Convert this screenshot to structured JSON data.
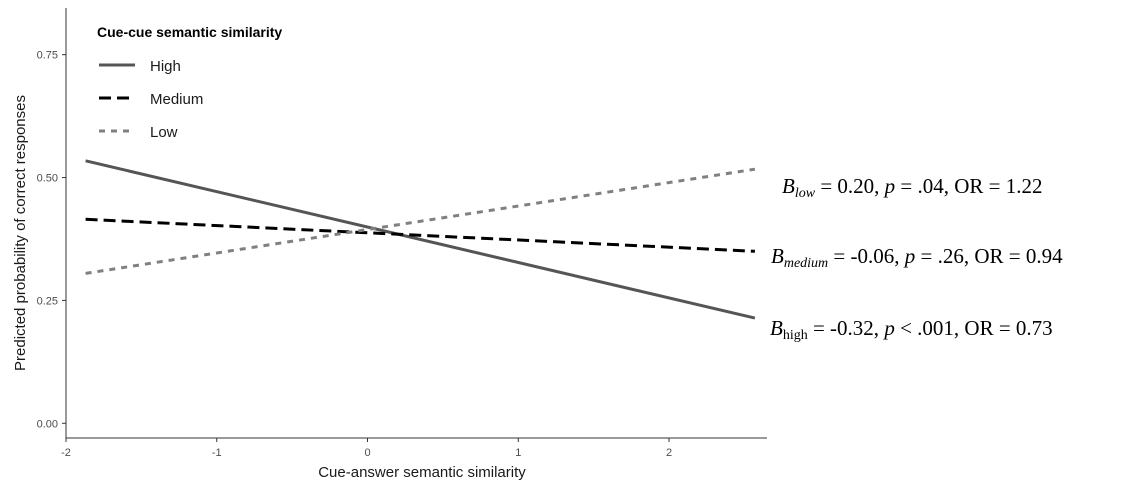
{
  "chart_data": {
    "type": "line",
    "title": "",
    "xlabel": "Cue-answer semantic similarity",
    "ylabel": "Predicted probability of correct responses",
    "xlim": [
      -2.0,
      2.65
    ],
    "ylim": [
      -0.03,
      0.845
    ],
    "x_ticks": [
      -2,
      -1,
      0,
      1,
      2
    ],
    "x_tick_labels": [
      "-2",
      "-1",
      "0",
      "1",
      "2"
    ],
    "y_ticks": [
      0.0,
      0.25,
      0.5,
      0.75
    ],
    "y_tick_labels": [
      "0.00",
      "0.25",
      "0.50",
      "0.75"
    ],
    "grid": false,
    "legend": {
      "title": "Cue-cue semantic similarity",
      "position": "top-left"
    },
    "series": [
      {
        "name": "High",
        "x": [
          -1.87,
          2.57
        ],
        "y": [
          0.534,
          0.214
        ],
        "color": "#555555",
        "dash": "solid"
      },
      {
        "name": "Medium",
        "x": [
          -1.87,
          2.57
        ],
        "y": [
          0.415,
          0.35
        ],
        "color": "#000000",
        "dash": "dashed"
      },
      {
        "name": "Low",
        "x": [
          -1.87,
          2.57
        ],
        "y": [
          0.305,
          0.517
        ],
        "color": "#808080",
        "dash": "dotted"
      }
    ],
    "annotations": [
      {
        "name": "low",
        "B": "B",
        "sub": "low",
        "sub_italic": true,
        "text": [
          {
            "t": " = 0.20, "
          },
          {
            "t": "p",
            "i": true
          },
          {
            "t": " = .04, OR = 1.22"
          }
        ]
      },
      {
        "name": "medium",
        "B": "B",
        "sub": "medium",
        "sub_italic": true,
        "text": [
          {
            "t": " = -0.06, "
          },
          {
            "t": "p",
            "i": true
          },
          {
            "t": " = .26, OR = 0.94"
          }
        ]
      },
      {
        "name": "high",
        "B": "B",
        "sub": "high",
        "sub_italic": false,
        "text": [
          {
            "t": " = -0.32, "
          },
          {
            "t": "p",
            "i": true
          },
          {
            "t": " < .001, OR = 0.73"
          }
        ]
      }
    ]
  }
}
